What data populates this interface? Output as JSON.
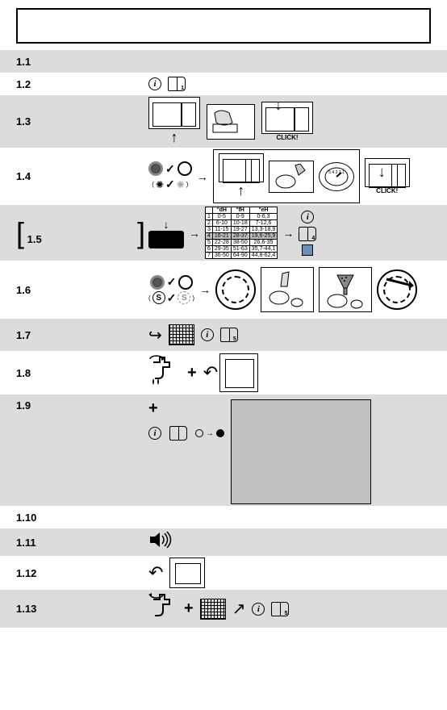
{
  "title": "",
  "colors": {
    "grey": "#dcdcdc",
    "panel_grey": "#bfbfbf",
    "disk_blue": "#6b8eb8"
  },
  "steps": [
    {
      "n": "1.1"
    },
    {
      "n": "1.2"
    },
    {
      "n": "1.3",
      "note_visible": ""
    },
    {
      "n": "1.4"
    },
    {
      "n": "1.5",
      "bracket": ""
    },
    {
      "n": "1.6"
    },
    {
      "n": "1.7"
    },
    {
      "n": "1.8"
    },
    {
      "n": "1.9"
    },
    {
      "n": "1.10"
    },
    {
      "n": "1.11"
    },
    {
      "n": "1.12"
    },
    {
      "n": "1.13"
    }
  ],
  "click_text": "CLICK!",
  "manual_refs": {
    "step1_2": "1",
    "step1_5": "4",
    "step1_7": "5",
    "step1_13": "5"
  },
  "hardness_table": {
    "headers": [
      "",
      "°dH",
      "°fH",
      "°eH"
    ],
    "rows": [
      [
        "1",
        "0-5",
        "0-9",
        "0-6,3"
      ],
      [
        "2",
        "6-10",
        "10-18",
        "7-12,6"
      ],
      [
        "3",
        "11-15",
        "19-27",
        "13,3-18,9"
      ],
      [
        "4",
        "16-21",
        "28-37",
        "19,6-25,9"
      ],
      [
        "5",
        "22-28",
        "38-50",
        "26,6-35"
      ],
      [
        "6",
        "29-35",
        "51-63",
        "35,7-44,1"
      ],
      [
        "7",
        "36-50",
        "64-90",
        "44,8-62,4"
      ]
    ],
    "highlight_row_index": 3,
    "highlight_color": "#bfbfbf"
  },
  "plus": "+"
}
